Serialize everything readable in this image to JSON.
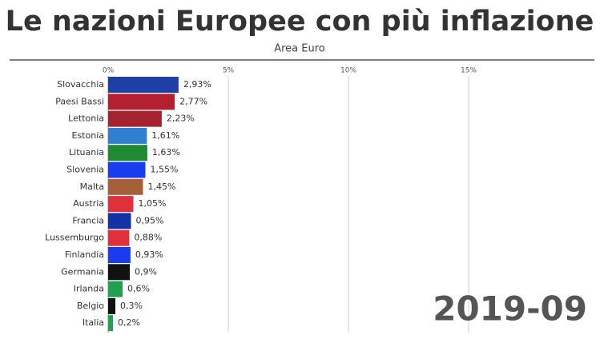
{
  "chart_data": {
    "type": "hbar",
    "title": "Le nazioni Europee con più inflazione",
    "subtitle": "Area Euro",
    "annotation": "2019-09",
    "categories": [
      "Slovacchia",
      "Paesi Bassi",
      "Lettonia",
      "Estonia",
      "Lituania",
      "Slovenia",
      "Malta",
      "Austria",
      "Francia",
      "Lussemburgo",
      "Finlandia",
      "Germania",
      "Irlanda",
      "Belgio",
      "Italia"
    ],
    "values": [
      2.93,
      2.77,
      2.23,
      1.61,
      1.63,
      1.55,
      1.45,
      1.05,
      0.95,
      0.88,
      0.93,
      0.9,
      0.6,
      0.3,
      0.2
    ],
    "value_labels": [
      "2,93%",
      "2,77%",
      "2,23%",
      "1,61%",
      "1,63%",
      "1,55%",
      "1,45%",
      "1,05%",
      "0,95%",
      "0,88%",
      "0,93%",
      "0,9%",
      "0,6%",
      "0,3%",
      "0,2%"
    ],
    "colors": [
      "#1f3fa8",
      "#b3202f",
      "#a3242f",
      "#2f80d2",
      "#1f8a30",
      "#1a3cf0",
      "#a5603a",
      "#e0303c",
      "#1232a5",
      "#e0303c",
      "#1a3cf0",
      "#111111",
      "#20a050",
      "#111111",
      "#20a050"
    ],
    "xlim": [
      0,
      20
    ],
    "xticks": [
      {
        "value": 0,
        "label": "0%"
      },
      {
        "value": 5,
        "label": "5%"
      },
      {
        "value": 10,
        "label": "10%"
      },
      {
        "value": 15,
        "label": "15%"
      }
    ],
    "grid": true
  }
}
